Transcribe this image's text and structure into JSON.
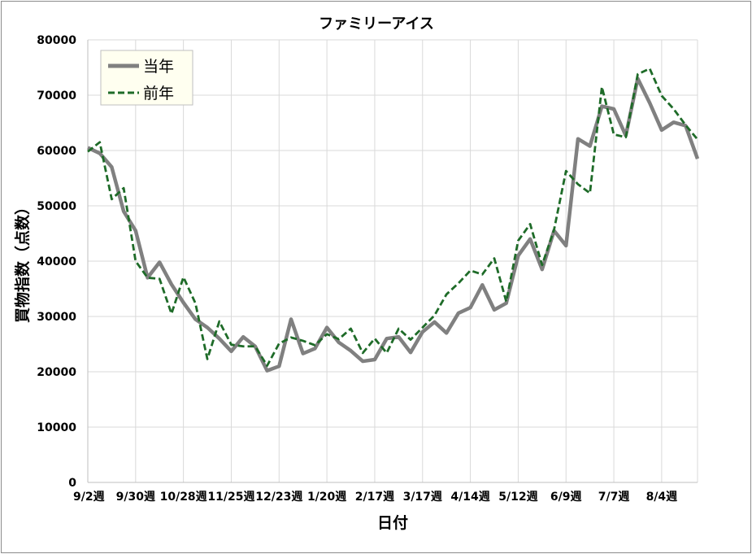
{
  "chart_data": {
    "type": "line",
    "title": "ファミリーアイス",
    "xlabel": "日付",
    "ylabel": "買物指数（点数）",
    "ylim": [
      0,
      80000
    ],
    "yticks": [
      0,
      10000,
      20000,
      30000,
      40000,
      50000,
      60000,
      70000,
      80000
    ],
    "grid": true,
    "legend_position": "top-left",
    "x_tick_labels": [
      {
        "index": 0,
        "label": "9/2週"
      },
      {
        "index": 4,
        "label": "9/30週"
      },
      {
        "index": 8,
        "label": "10/28週"
      },
      {
        "index": 12,
        "label": "11/25週"
      },
      {
        "index": 16,
        "label": "12/23週"
      },
      {
        "index": 20,
        "label": "1/20週"
      },
      {
        "index": 24,
        "label": "2/17週"
      },
      {
        "index": 28,
        "label": "3/17週"
      },
      {
        "index": 32,
        "label": "4/14週"
      },
      {
        "index": 36,
        "label": "5/12週"
      },
      {
        "index": 40,
        "label": "6/9週"
      },
      {
        "index": 44,
        "label": "7/7週"
      },
      {
        "index": 48,
        "label": "8/4週"
      }
    ],
    "series": [
      {
        "name": "当年",
        "color": "#808080",
        "style": "solid",
        "values": [
          60500,
          59500,
          57000,
          49000,
          45500,
          37000,
          39800,
          35800,
          32500,
          29500,
          28000,
          26000,
          23700,
          26300,
          24600,
          20200,
          21000,
          29500,
          23300,
          24200,
          28000,
          25300,
          23800,
          21900,
          22200,
          26000,
          26300,
          23500,
          27200,
          29000,
          27000,
          30600,
          31600,
          35700,
          31200,
          32400,
          41000,
          44000,
          38500,
          45500,
          42800,
          62100,
          60800,
          68000,
          67500,
          62700,
          73000,
          68600,
          63700,
          65100,
          64500,
          58500
        ]
      },
      {
        "name": "前年",
        "color": "#1e6b28",
        "style": "dashed",
        "values": [
          59800,
          61500,
          51200,
          53200,
          40000,
          37000,
          36800,
          30500,
          37100,
          32400,
          22300,
          29100,
          24900,
          24600,
          24600,
          21100,
          25100,
          26200,
          25600,
          24800,
          26800,
          25900,
          27800,
          23400,
          26000,
          23400,
          27800,
          25800,
          28000,
          30200,
          34000,
          36000,
          38300,
          37600,
          40500,
          32700,
          43700,
          46700,
          39300,
          45700,
          56300,
          53900,
          52300,
          71500,
          62900,
          62400,
          73800,
          74800,
          69900,
          67500,
          64600,
          62000
        ]
      }
    ]
  }
}
